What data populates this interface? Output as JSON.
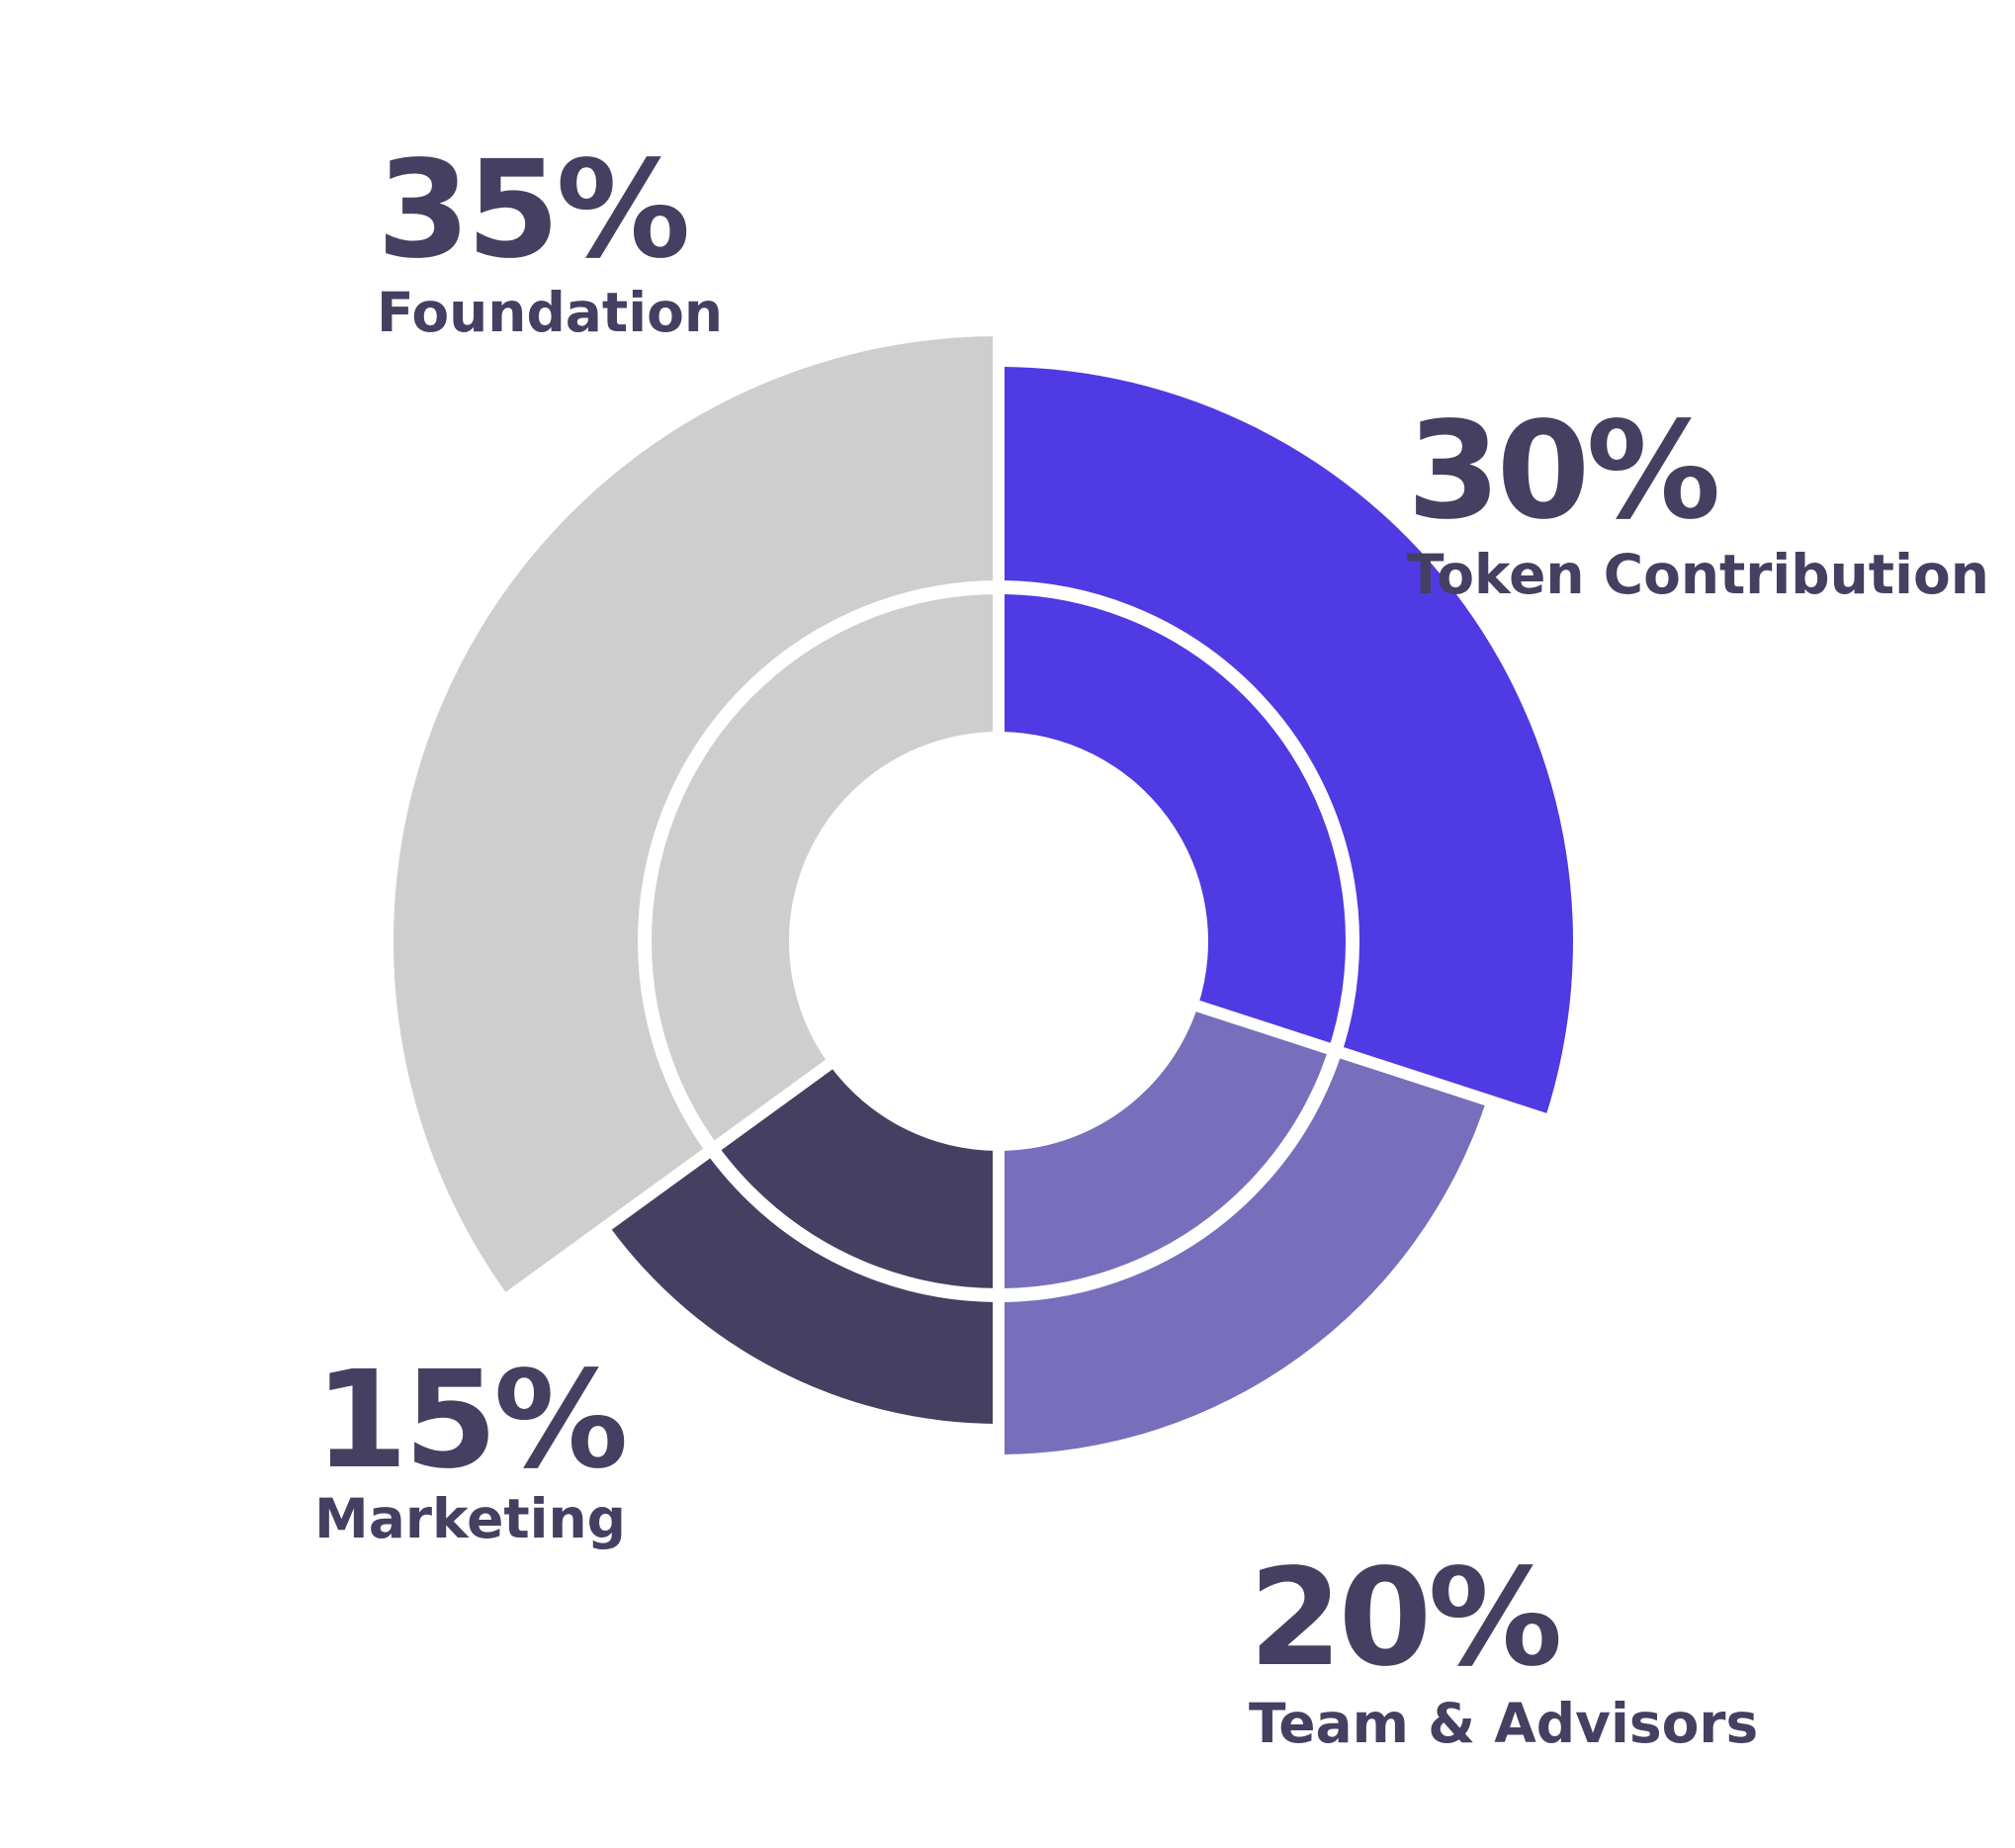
{
  "chart_data": {
    "type": "pie",
    "variant": "nested-radial-donut",
    "categories": [
      "Token Contribution",
      "Team & Advisors",
      "Marketing",
      "Foundation"
    ],
    "values": [
      30,
      20,
      15,
      35
    ],
    "value_labels": [
      "30%",
      "20%",
      "15%",
      "35%"
    ],
    "colors": [
      "#4f3ae3",
      "#776fbb",
      "#453f61",
      "#cecece"
    ],
    "label_color": "#453f61",
    "start_angle_deg": 0,
    "direction": "clockwise",
    "legend": "none"
  }
}
